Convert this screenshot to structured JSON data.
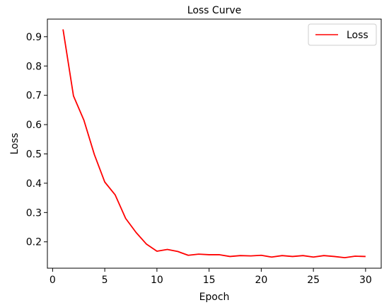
{
  "chart_data": {
    "type": "line",
    "title": "Loss Curve",
    "xlabel": "Epoch",
    "ylabel": "Loss",
    "xlim": [
      -0.5,
      31.5
    ],
    "ylim": [
      0.11,
      0.96
    ],
    "xticks": [
      0,
      5,
      10,
      15,
      20,
      25,
      30
    ],
    "yticks": [
      0.2,
      0.3,
      0.4,
      0.5,
      0.6,
      0.7,
      0.8,
      0.9
    ],
    "legend_position": "top-right",
    "series": [
      {
        "name": "Loss",
        "color": "#ff0000",
        "x": [
          1,
          2,
          3,
          4,
          5,
          6,
          7,
          8,
          9,
          10,
          11,
          12,
          13,
          14,
          15,
          16,
          17,
          18,
          19,
          20,
          21,
          22,
          23,
          24,
          25,
          26,
          27,
          28,
          29,
          30
        ],
        "y": [
          0.925,
          0.698,
          0.615,
          0.498,
          0.404,
          0.36,
          0.28,
          0.232,
          0.192,
          0.168,
          0.174,
          0.167,
          0.154,
          0.158,
          0.156,
          0.156,
          0.15,
          0.153,
          0.152,
          0.154,
          0.148,
          0.153,
          0.15,
          0.153,
          0.148,
          0.153,
          0.15,
          0.146,
          0.151,
          0.15
        ]
      }
    ]
  }
}
